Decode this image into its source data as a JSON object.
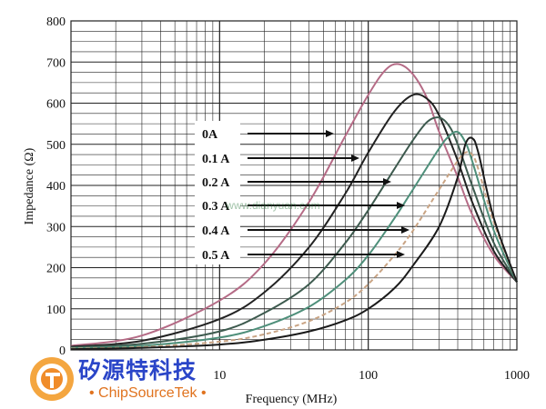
{
  "chart_data": {
    "type": "line",
    "title": "",
    "xlabel": "Frequency (MHz)",
    "ylabel": "Impedance (Ω)",
    "xscale": "log",
    "xlim": [
      1,
      1000
    ],
    "ylim": [
      0,
      800
    ],
    "xticks": [
      "10",
      "100",
      "1000"
    ],
    "yticks": [
      "0",
      "100",
      "200",
      "300",
      "400",
      "500",
      "600",
      "700",
      "800"
    ],
    "grid": true,
    "series": [
      {
        "name": "0A",
        "color": "#b56b86",
        "x": [
          1,
          3,
          10,
          20,
          40,
          70,
          100,
          130,
          160,
          200,
          250,
          300,
          400,
          500,
          700,
          1000
        ],
        "y": [
          10,
          35,
          120,
          210,
          360,
          520,
          620,
          680,
          695,
          670,
          610,
          530,
          420,
          330,
          230,
          165
        ]
      },
      {
        "name": "0.1 A",
        "color": "#222222",
        "x": [
          1,
          3,
          10,
          20,
          40,
          70,
          100,
          150,
          200,
          250,
          300,
          400,
          500,
          700,
          1000
        ],
        "y": [
          8,
          22,
          75,
          140,
          250,
          380,
          480,
          580,
          620,
          610,
          570,
          460,
          360,
          240,
          165
        ]
      },
      {
        "name": "0.2 A",
        "color": "#3d5a4e",
        "x": [
          1,
          3,
          10,
          20,
          40,
          70,
          100,
          150,
          200,
          250,
          300,
          350,
          400,
          500,
          700,
          1000
        ],
        "y": [
          6,
          15,
          45,
          90,
          160,
          260,
          340,
          440,
          510,
          555,
          565,
          545,
          500,
          400,
          260,
          165
        ]
      },
      {
        "name": "0.3 A",
        "color": "#4e8f7a",
        "x": [
          1,
          3,
          10,
          20,
          40,
          70,
          100,
          150,
          200,
          300,
          350,
          400,
          450,
          500,
          700,
          1000
        ],
        "y": [
          4,
          10,
          30,
          58,
          105,
          170,
          230,
          320,
          390,
          490,
          520,
          530,
          505,
          460,
          290,
          165
        ]
      },
      {
        "name": "0.4 A",
        "color": "#c9a484",
        "x": [
          1,
          3,
          10,
          20,
          40,
          70,
          100,
          150,
          200,
          300,
          400,
          450,
          500,
          550,
          700,
          1000
        ],
        "y": [
          3,
          7,
          20,
          38,
          70,
          115,
          160,
          230,
          290,
          390,
          460,
          480,
          475,
          440,
          310,
          165
        ]
      },
      {
        "name": "0.5 A",
        "color": "#1a1a1a",
        "x": [
          1,
          3,
          10,
          20,
          40,
          70,
          100,
          150,
          200,
          300,
          400,
          450,
          500,
          550,
          700,
          1000
        ],
        "y": [
          2,
          5,
          13,
          25,
          45,
          72,
          100,
          150,
          205,
          300,
          420,
          500,
          515,
          480,
          320,
          165
        ]
      }
    ],
    "annotations": [
      "0A",
      "0.1 A",
      "0.2 A",
      "0.3 A",
      "0.4 A",
      "0.5 A"
    ]
  },
  "watermark": {
    "cn": "矽源特科技",
    "en": "• ChipSourceTek •",
    "overlay": "www.dianyuan.com"
  }
}
